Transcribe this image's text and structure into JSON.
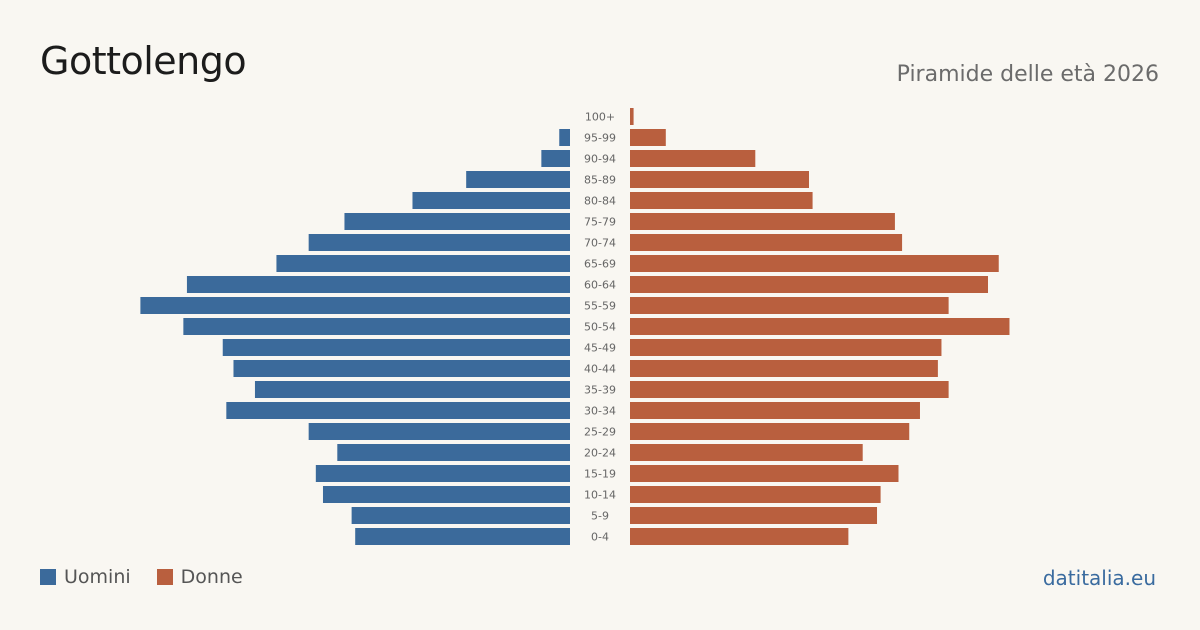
{
  "title": "Gottolengo",
  "subtitle": "Piramide delle età 2026",
  "source": "datitalia.eu",
  "colors": {
    "men": "#3b6a9b",
    "women": "#b95f3e",
    "background": "#f9f7f2"
  },
  "chart_data": {
    "type": "bar",
    "orientation": "horizontal-pyramid",
    "title": "Gottolengo",
    "subtitle": "Piramide delle età 2026",
    "categories": [
      "100+",
      "95-99",
      "90-94",
      "85-89",
      "80-84",
      "75-79",
      "70-74",
      "65-69",
      "60-64",
      "55-59",
      "50-54",
      "45-49",
      "40-44",
      "35-39",
      "30-34",
      "25-29",
      "20-24",
      "15-19",
      "10-14",
      "5-9",
      "0-4"
    ],
    "series": [
      {
        "name": "Uomini",
        "color": "#3b6a9b",
        "side": "left",
        "values": [
          0,
          3,
          8,
          29,
          44,
          63,
          73,
          82,
          107,
          120,
          108,
          97,
          94,
          88,
          96,
          73,
          65,
          71,
          69,
          61,
          60
        ]
      },
      {
        "name": "Donne",
        "color": "#b95f3e",
        "side": "right",
        "values": [
          1,
          10,
          35,
          50,
          51,
          74,
          76,
          103,
          100,
          89,
          106,
          87,
          86,
          89,
          81,
          78,
          65,
          75,
          70,
          69,
          61
        ]
      }
    ],
    "legend": "bottom-left",
    "grid": false,
    "axis_labels_visible": false
  }
}
